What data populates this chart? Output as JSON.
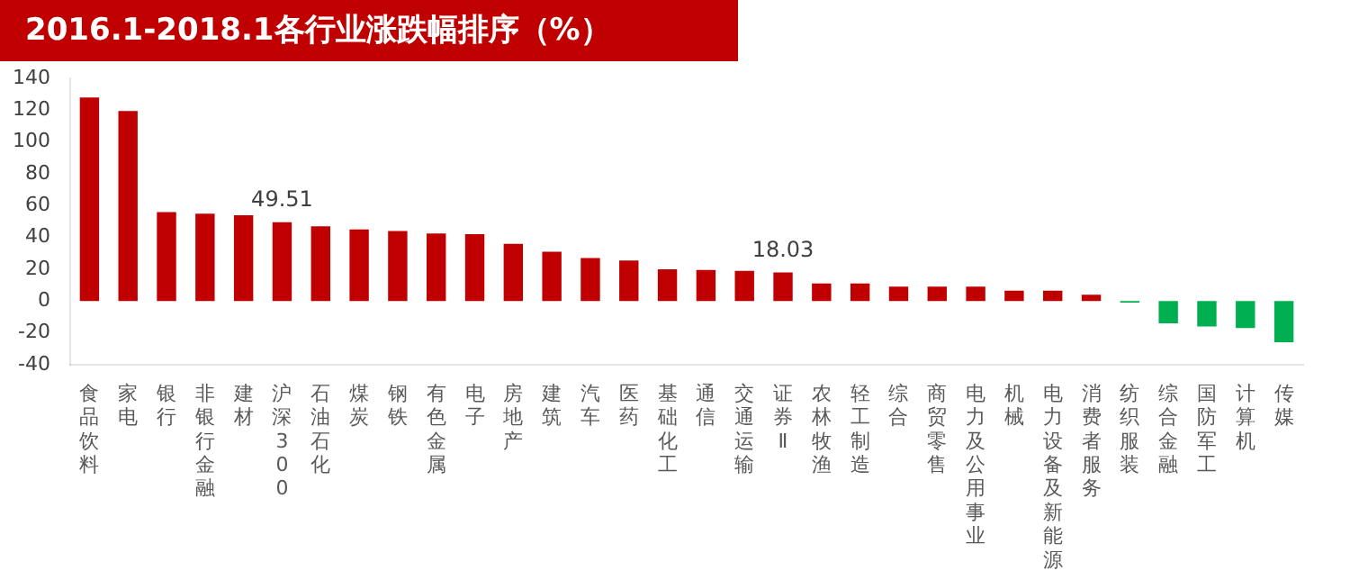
{
  "chart_data": {
    "type": "bar",
    "title": "2016.1-2018.1各行业涨跌幅排序（%）",
    "categories": [
      "食品饮料",
      "家电",
      "银行",
      "非银行金融",
      "建材",
      "沪深300",
      "石油石化",
      "煤炭",
      "钢铁",
      "有色金属",
      "电子",
      "房地产",
      "建筑",
      "汽车",
      "医药",
      "基础化工",
      "通信",
      "交通运输",
      "证券Ⅱ",
      "农林牧渔",
      "轻工制造",
      "综合",
      "商贸零售",
      "电力及公用事业",
      "机械",
      "电力设备及新能源",
      "消费者服务",
      "纺织服装",
      "综合金融",
      "国防军工",
      "计算机",
      "传媒"
    ],
    "values": [
      128,
      119.5,
      56,
      55,
      54,
      49.51,
      47,
      45,
      44,
      42.5,
      42,
      36,
      31,
      27,
      25.5,
      20,
      19.5,
      19,
      18.03,
      11,
      11,
      9,
      9,
      9,
      6.5,
      6.5,
      4,
      -1,
      -14,
      -16,
      -17,
      -26
    ],
    "colors": [
      "#c00000",
      "#c00000",
      "#c00000",
      "#c00000",
      "#c00000",
      "#c00000",
      "#c00000",
      "#c00000",
      "#c00000",
      "#c00000",
      "#c00000",
      "#c00000",
      "#c00000",
      "#c00000",
      "#c00000",
      "#c00000",
      "#c00000",
      "#c00000",
      "#c00000",
      "#c00000",
      "#c00000",
      "#c00000",
      "#c00000",
      "#c00000",
      "#c00000",
      "#c00000",
      "#c00000",
      "#00b050",
      "#00b050",
      "#00b050",
      "#00b050",
      "#00b050"
    ],
    "value_labels": [
      null,
      null,
      null,
      null,
      null,
      "49.51",
      null,
      null,
      null,
      null,
      null,
      null,
      null,
      null,
      null,
      null,
      null,
      null,
      "18.03",
      null,
      null,
      null,
      null,
      null,
      null,
      null,
      null,
      null,
      null,
      null,
      null,
      null
    ],
    "ylim": [
      -40,
      140
    ],
    "yticks": [
      -40,
      -20,
      0,
      20,
      40,
      60,
      80,
      100,
      120,
      140
    ],
    "grid": false,
    "legend": false
  }
}
